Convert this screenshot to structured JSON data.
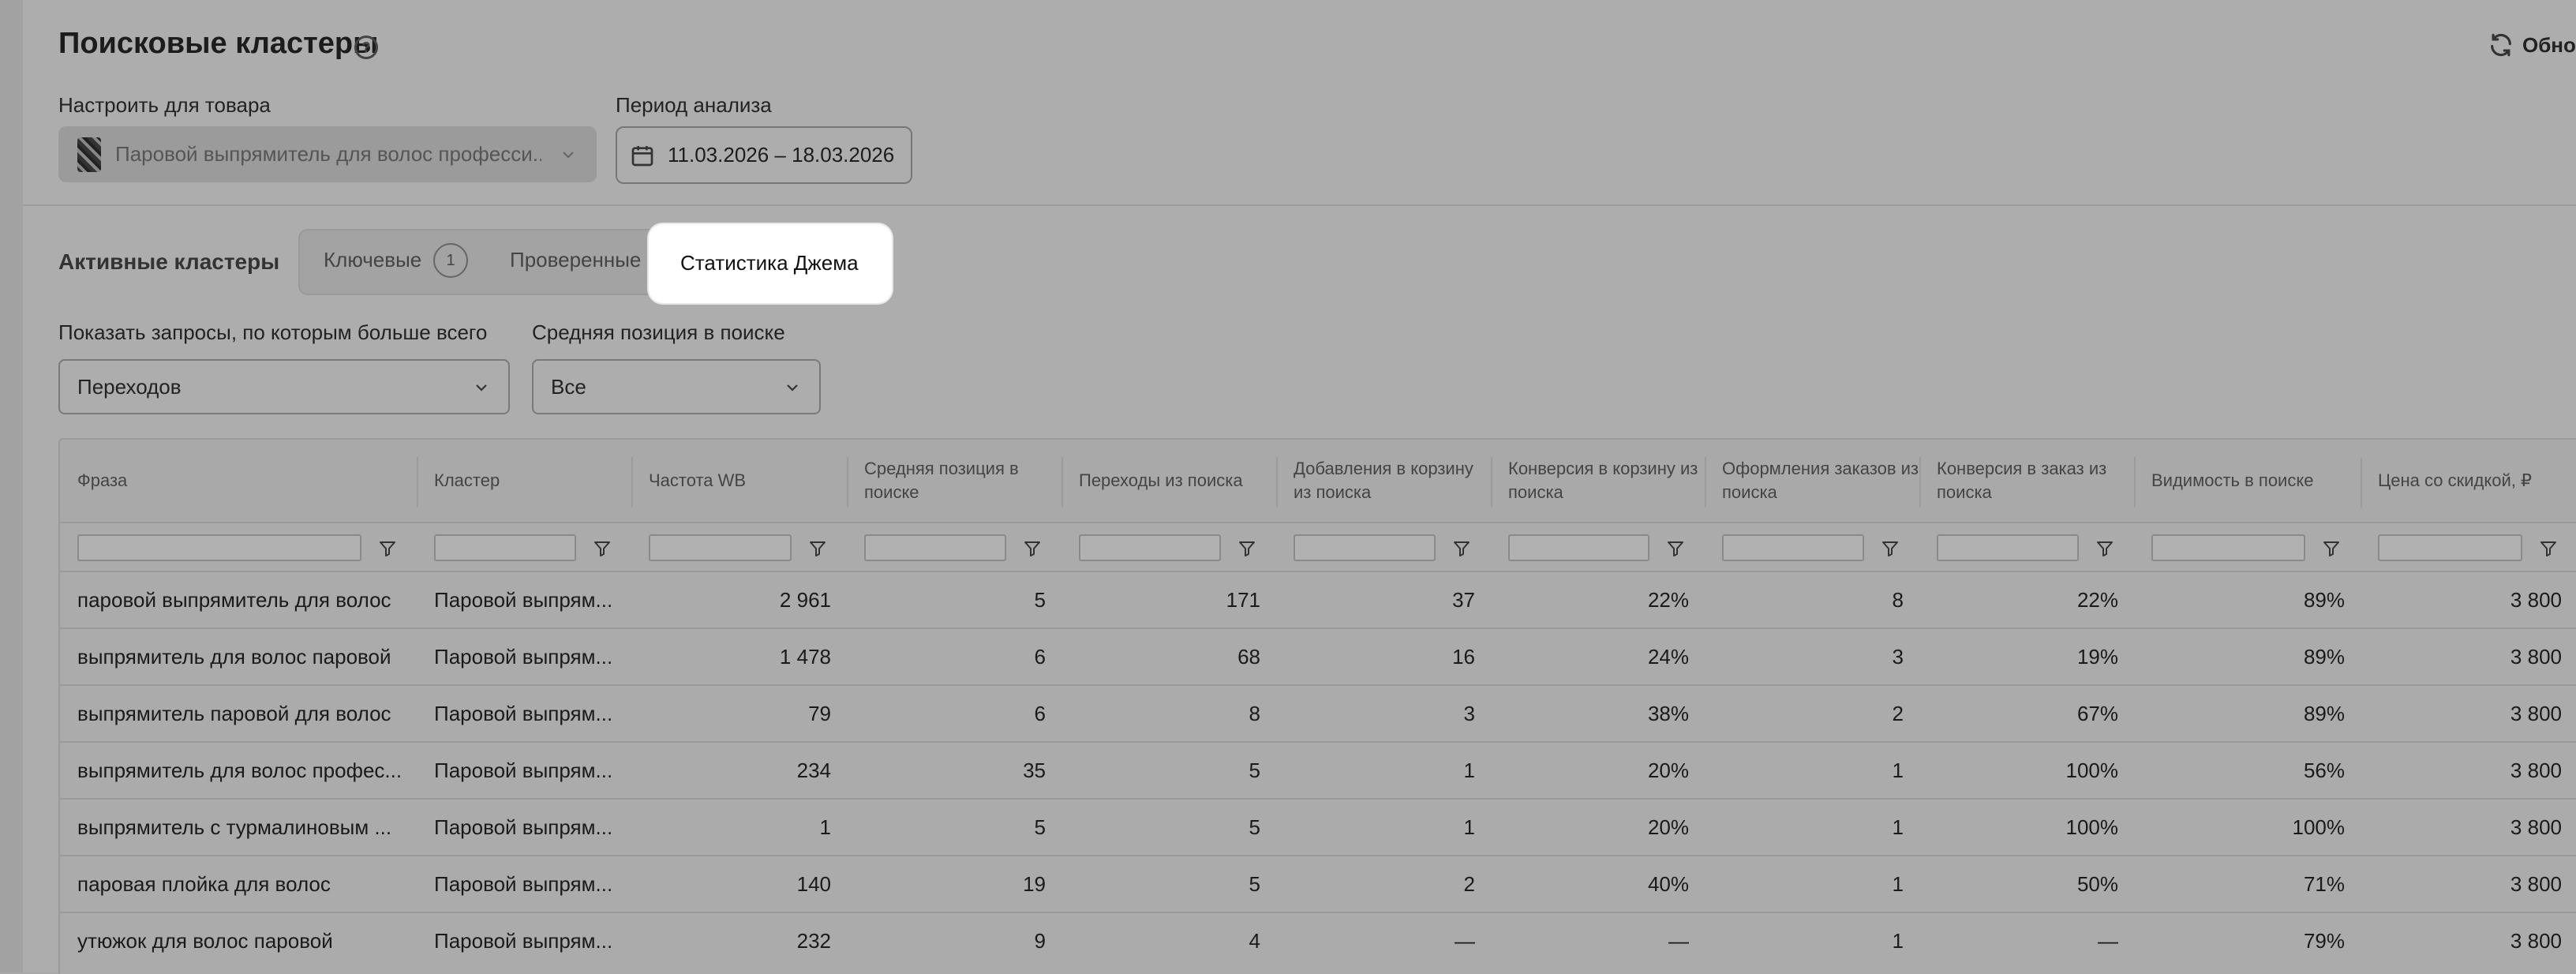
{
  "header": {
    "title": "Поисковые кластеры",
    "help_icon": "?",
    "refresh_label": "Обнов"
  },
  "filters": {
    "product_label": "Настроить для товара",
    "product_value": "Паровой выпрямитель для волос професси...",
    "period_label": "Период анализа",
    "period_value": "11.03.2026 – 18.03.2026"
  },
  "clusters": {
    "label": "Активные кластеры",
    "tabs": [
      {
        "label": "Ключевые",
        "badge": "1"
      },
      {
        "label": "Проверенные"
      },
      {
        "label": "Статистика Джема",
        "active": true
      }
    ]
  },
  "query_filters": {
    "show_label": "Показать запросы, по которым больше всего",
    "show_value": "Переходов",
    "position_label": "Средняя позиция в поиске",
    "position_value": "Все"
  },
  "table": {
    "columns": [
      "Фраза",
      "Кластер",
      "Частота WB",
      "Средняя позиция в поиске",
      "Переходы из поиска",
      "Добавления в корзину из поиска",
      "Конверсия в корзину из поиска",
      "Оформления заказов из поиска",
      "Конверсия в заказ из поиска",
      "Видимость в поиске",
      "Цена со скидкой, ₽"
    ],
    "rows": [
      [
        "паровой выпрямитель для волос",
        "Паровой выпрям...",
        "2 961",
        "5",
        "171",
        "37",
        "22%",
        "8",
        "22%",
        "89%",
        "3 800"
      ],
      [
        "выпрямитель для волос паровой",
        "Паровой выпрям...",
        "1 478",
        "6",
        "68",
        "16",
        "24%",
        "3",
        "19%",
        "89%",
        "3 800"
      ],
      [
        "выпрямитель паровой для волос",
        "Паровой выпрям...",
        "79",
        "6",
        "8",
        "3",
        "38%",
        "2",
        "67%",
        "89%",
        "3 800"
      ],
      [
        "выпрямитель для волос профес...",
        "Паровой выпрям...",
        "234",
        "35",
        "5",
        "1",
        "20%",
        "1",
        "100%",
        "56%",
        "3 800"
      ],
      [
        "выпрямитель с турмалиновым ...",
        "Паровой выпрям...",
        "1",
        "5",
        "5",
        "1",
        "20%",
        "1",
        "100%",
        "100%",
        "3 800"
      ],
      [
        "паровая плойка для волос",
        "Паровой выпрям...",
        "140",
        "19",
        "5",
        "2",
        "40%",
        "1",
        "50%",
        "71%",
        "3 800"
      ],
      [
        "утюжок для волос паровой",
        "Паровой выпрям...",
        "232",
        "9",
        "4",
        "—",
        "—",
        "1",
        "—",
        "79%",
        "3 800"
      ]
    ]
  },
  "icons": {
    "refresh": "refresh-icon",
    "calendar": "calendar-icon",
    "chevron": "chevron-down-icon",
    "filter": "filter-icon"
  }
}
